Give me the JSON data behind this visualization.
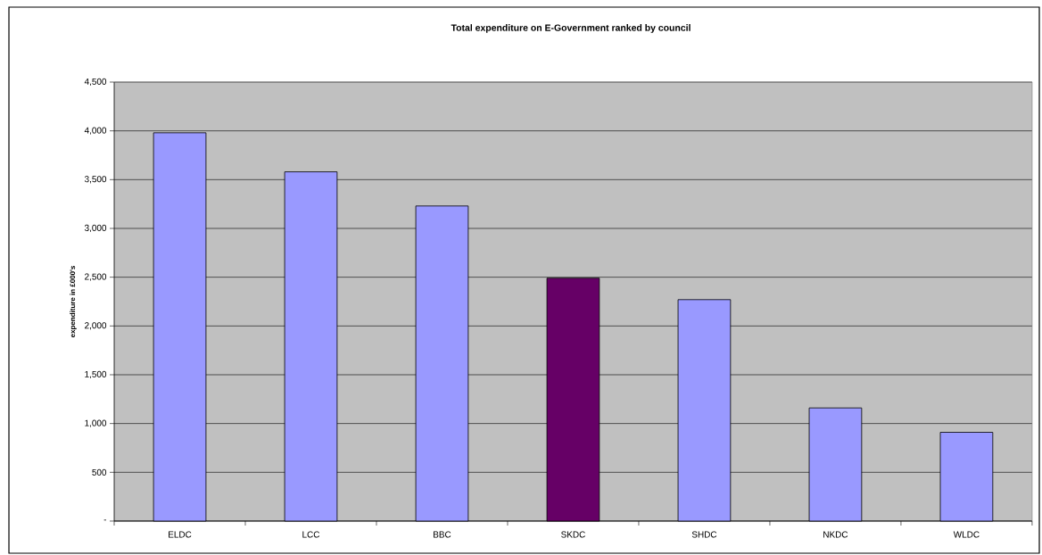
{
  "chart_data": {
    "type": "bar",
    "title": "Total expenditure on E-Government ranked by council",
    "ylabel": "expenditure in £000's",
    "categories": [
      "ELDC",
      "LCC",
      "BBC",
      "SKDC",
      "SHDC",
      "NKDC",
      "WLDC"
    ],
    "values": [
      3980,
      3580,
      3230,
      2490,
      2270,
      1160,
      910
    ],
    "colors": [
      "#9999ff",
      "#9999ff",
      "#9999ff",
      "#660066",
      "#9999ff",
      "#9999ff",
      "#9999ff"
    ],
    "ylim": [
      0,
      4500
    ],
    "yticks": [
      {
        "value": 0,
        "label": "-"
      },
      500,
      {
        "value": 1000,
        "label": "1,000"
      },
      {
        "value": 1500,
        "label": "1,500"
      },
      {
        "value": 2000,
        "label": "2,000"
      },
      {
        "value": 2500,
        "label": "2,500"
      },
      {
        "value": 3000,
        "label": "3,000"
      },
      {
        "value": 3500,
        "label": "3,500"
      },
      {
        "value": 4000,
        "label": "4,000"
      },
      {
        "value": 4500,
        "label": "4,500"
      }
    ],
    "grid": "y"
  }
}
